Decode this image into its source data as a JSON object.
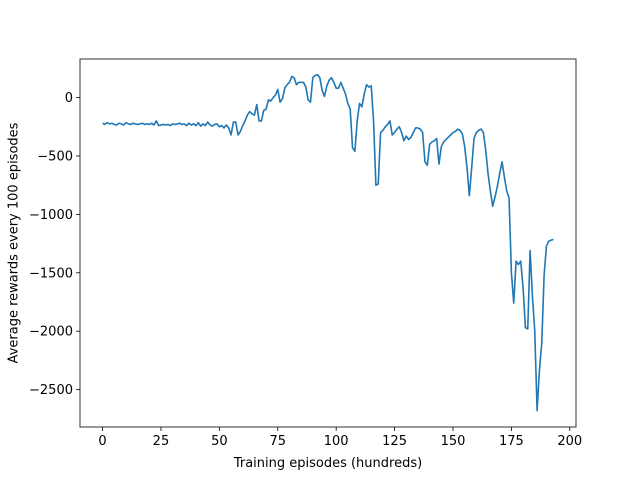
{
  "chart_data": {
    "type": "line",
    "xlabel": "Training episodes (hundreds)",
    "ylabel": "Average rewards every 100 episodes",
    "color": "#1f77b4",
    "x": [
      0,
      1,
      2,
      3,
      4,
      5,
      6,
      7,
      8,
      9,
      10,
      11,
      12,
      13,
      14,
      15,
      16,
      17,
      18,
      19,
      20,
      21,
      22,
      23,
      24,
      25,
      26,
      27,
      28,
      29,
      30,
      31,
      32,
      33,
      34,
      35,
      36,
      37,
      38,
      39,
      40,
      41,
      42,
      43,
      44,
      45,
      46,
      47,
      48,
      49,
      50,
      51,
      52,
      53,
      54,
      55,
      56,
      57,
      58,
      59,
      60,
      61,
      62,
      63,
      64,
      65,
      66,
      67,
      68,
      69,
      70,
      71,
      72,
      73,
      74,
      75,
      76,
      77,
      78,
      79,
      80,
      81,
      82,
      83,
      84,
      85,
      86,
      87,
      88,
      89,
      90,
      91,
      92,
      93,
      94,
      95,
      96,
      97,
      98,
      99,
      100,
      101,
      102,
      103,
      104,
      105,
      106,
      107,
      108,
      109,
      110,
      111,
      112,
      113,
      114,
      115,
      116,
      117,
      118,
      119,
      120,
      121,
      122,
      123,
      124,
      125,
      126,
      127,
      128,
      129,
      130,
      131,
      132,
      133,
      134,
      135,
      136,
      137,
      138,
      139,
      140,
      141,
      142,
      143,
      144,
      145,
      146,
      147,
      148,
      149,
      150,
      151,
      152,
      153,
      154,
      155,
      156,
      157,
      158,
      159,
      160,
      161,
      162,
      163,
      164,
      165,
      166,
      167,
      168,
      169,
      170,
      171,
      172,
      173,
      174,
      175,
      176,
      177,
      178,
      179,
      180,
      181,
      182,
      183,
      184,
      185,
      186,
      187,
      188,
      189,
      190,
      191,
      192,
      193
    ],
    "values": [
      -220,
      -230,
      -215,
      -225,
      -220,
      -230,
      -235,
      -220,
      -225,
      -235,
      -215,
      -225,
      -230,
      -220,
      -225,
      -230,
      -225,
      -220,
      -230,
      -225,
      -230,
      -220,
      -235,
      -200,
      -240,
      -235,
      -230,
      -235,
      -230,
      -240,
      -225,
      -230,
      -225,
      -220,
      -230,
      -225,
      -240,
      -220,
      -235,
      -225,
      -240,
      -215,
      -245,
      -225,
      -240,
      -210,
      -235,
      -245,
      -230,
      -225,
      -250,
      -240,
      -260,
      -235,
      -260,
      -320,
      -210,
      -210,
      -320,
      -290,
      -240,
      -200,
      -150,
      -120,
      -140,
      -150,
      -60,
      -200,
      -200,
      -110,
      -100,
      -20,
      -30,
      0,
      20,
      70,
      -40,
      -10,
      80,
      110,
      130,
      180,
      170,
      110,
      130,
      130,
      130,
      90,
      -20,
      -40,
      170,
      190,
      195,
      170,
      60,
      10,
      100,
      150,
      170,
      130,
      80,
      80,
      130,
      80,
      30,
      -50,
      -100,
      -430,
      -460,
      -200,
      -50,
      -80,
      30,
      110,
      90,
      100,
      -200,
      -750,
      -740,
      -300,
      -280,
      -250,
      -230,
      -200,
      -320,
      -300,
      -270,
      -250,
      -300,
      -370,
      -330,
      -360,
      -340,
      -300,
      -260,
      -260,
      -270,
      -300,
      -550,
      -580,
      -400,
      -380,
      -370,
      -350,
      -570,
      -420,
      -380,
      -360,
      -340,
      -320,
      -300,
      -290,
      -270,
      -280,
      -310,
      -420,
      -600,
      -840,
      -600,
      -350,
      -300,
      -280,
      -270,
      -300,
      -450,
      -650,
      -800,
      -930,
      -850,
      -760,
      -650,
      -550,
      -680,
      -800,
      -860,
      -1500,
      -1760,
      -1400,
      -1430,
      -1400,
      -1630,
      -1970,
      -1980,
      -1310,
      -1700,
      -2000,
      -2680,
      -2330,
      -2100,
      -1520,
      -1270,
      -1230,
      -1220,
      -1215
    ],
    "xlim": [
      -9.65,
      202.65
    ],
    "ylim": [
      -2820,
      330
    ],
    "xticks": [
      0,
      25,
      50,
      75,
      100,
      125,
      150,
      175,
      200
    ],
    "yticks": [
      {
        "value": -2500,
        "label": "−2500"
      },
      {
        "value": -2000,
        "label": "−2000"
      },
      {
        "value": -1500,
        "label": "−1500"
      },
      {
        "value": -1000,
        "label": "−1000"
      },
      {
        "value": -500,
        "label": "−500"
      },
      0
    ]
  }
}
